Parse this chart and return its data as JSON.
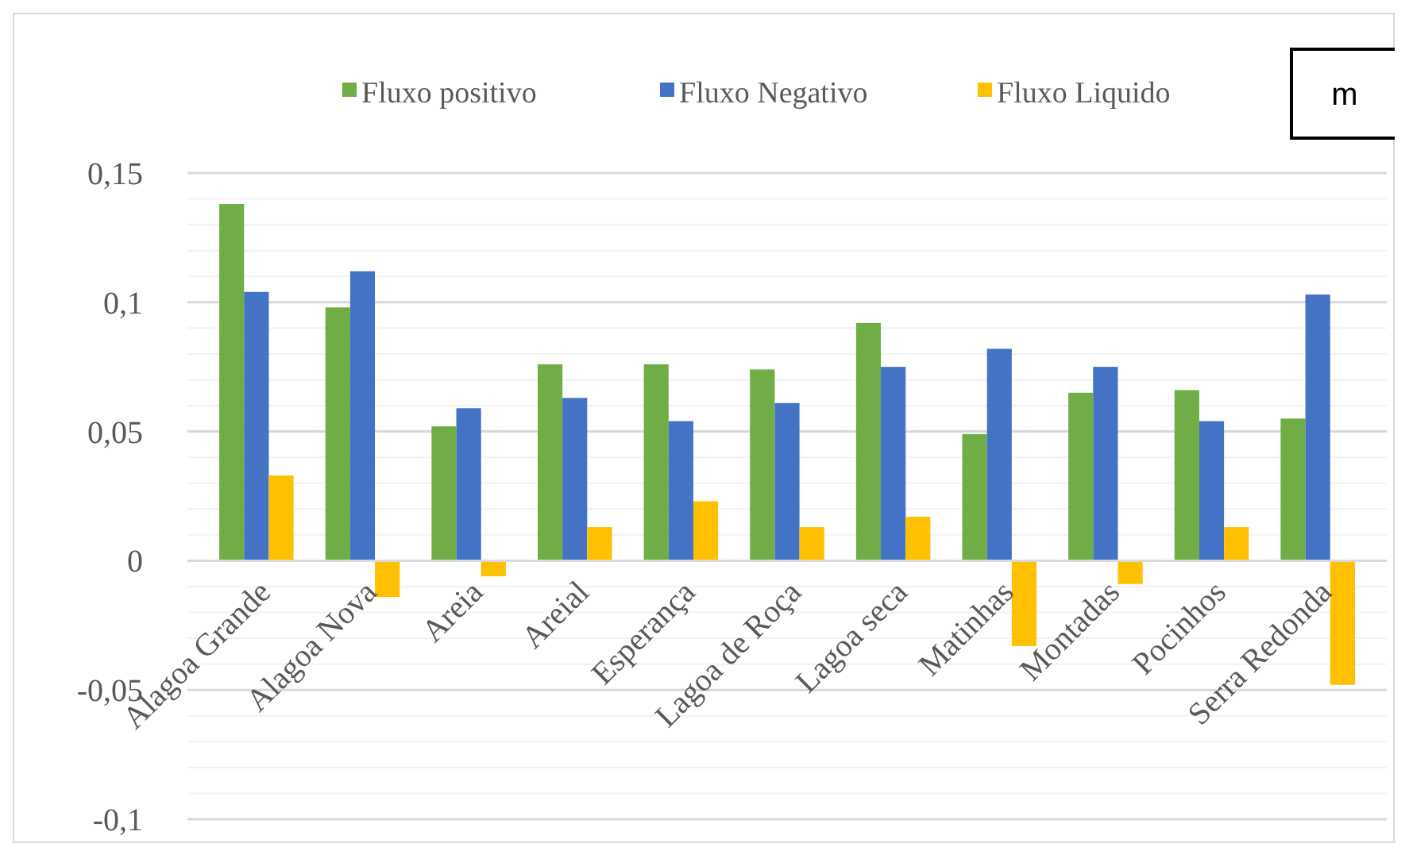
{
  "chart_data": {
    "type": "bar",
    "categories": [
      "Alagoa Grande",
      "Alagoa Nova",
      "Areia",
      "Areial",
      "Esperança",
      "Lagoa de Roça",
      "Lagoa seca",
      "Matinhas",
      "Montadas",
      "Pocinhos",
      "Serra Redonda"
    ],
    "series": [
      {
        "name": "Fluxo positivo",
        "color": "#70ad47",
        "values": [
          0.138,
          0.098,
          0.052,
          0.076,
          0.076,
          0.074,
          0.092,
          0.049,
          0.065,
          0.066,
          0.055
        ]
      },
      {
        "name": "Fluxo Negativo",
        "color": "#4472c4",
        "values": [
          0.104,
          0.112,
          0.059,
          0.063,
          0.054,
          0.061,
          0.075,
          0.082,
          0.075,
          0.054,
          0.103
        ]
      },
      {
        "name": "Fluxo Liquido",
        "color": "#ffc000",
        "values": [
          0.033,
          -0.014,
          -0.006,
          0.013,
          0.023,
          0.013,
          0.017,
          -0.033,
          -0.009,
          0.013,
          -0.048
        ]
      }
    ],
    "ylim": [
      -0.1,
      0.15
    ],
    "yticks": [
      {
        "value": -0.1,
        "label": "-0,1"
      },
      {
        "value": -0.09,
        "label": null
      },
      {
        "value": -0.08,
        "label": null
      },
      {
        "value": -0.07,
        "label": null
      },
      {
        "value": -0.06,
        "label": null
      },
      {
        "value": -0.05,
        "label": "-0,05"
      },
      {
        "value": -0.04,
        "label": null
      },
      {
        "value": -0.03,
        "label": null
      },
      {
        "value": -0.02,
        "label": null
      },
      {
        "value": -0.01,
        "label": null
      },
      0,
      {
        "value": 0.01,
        "label": null
      },
      {
        "value": 0.02,
        "label": null
      },
      {
        "value": 0.03,
        "label": null
      },
      {
        "value": 0.04,
        "label": null
      },
      {
        "value": 0.05,
        "label": "0,05"
      },
      {
        "value": 0.06,
        "label": null
      },
      {
        "value": 0.07,
        "label": null
      },
      {
        "value": 0.08,
        "label": null
      },
      {
        "value": 0.09,
        "label": null
      },
      {
        "value": 0.1,
        "label": "0,1"
      },
      {
        "value": 0.11,
        "label": null
      },
      {
        "value": 0.12,
        "label": null
      },
      {
        "value": 0.13,
        "label": null
      },
      {
        "value": 0.14,
        "label": null
      },
      {
        "value": 0.15,
        "label": "0,15"
      }
    ],
    "grid": true,
    "legend": "top",
    "annotations": [
      "m"
    ]
  }
}
